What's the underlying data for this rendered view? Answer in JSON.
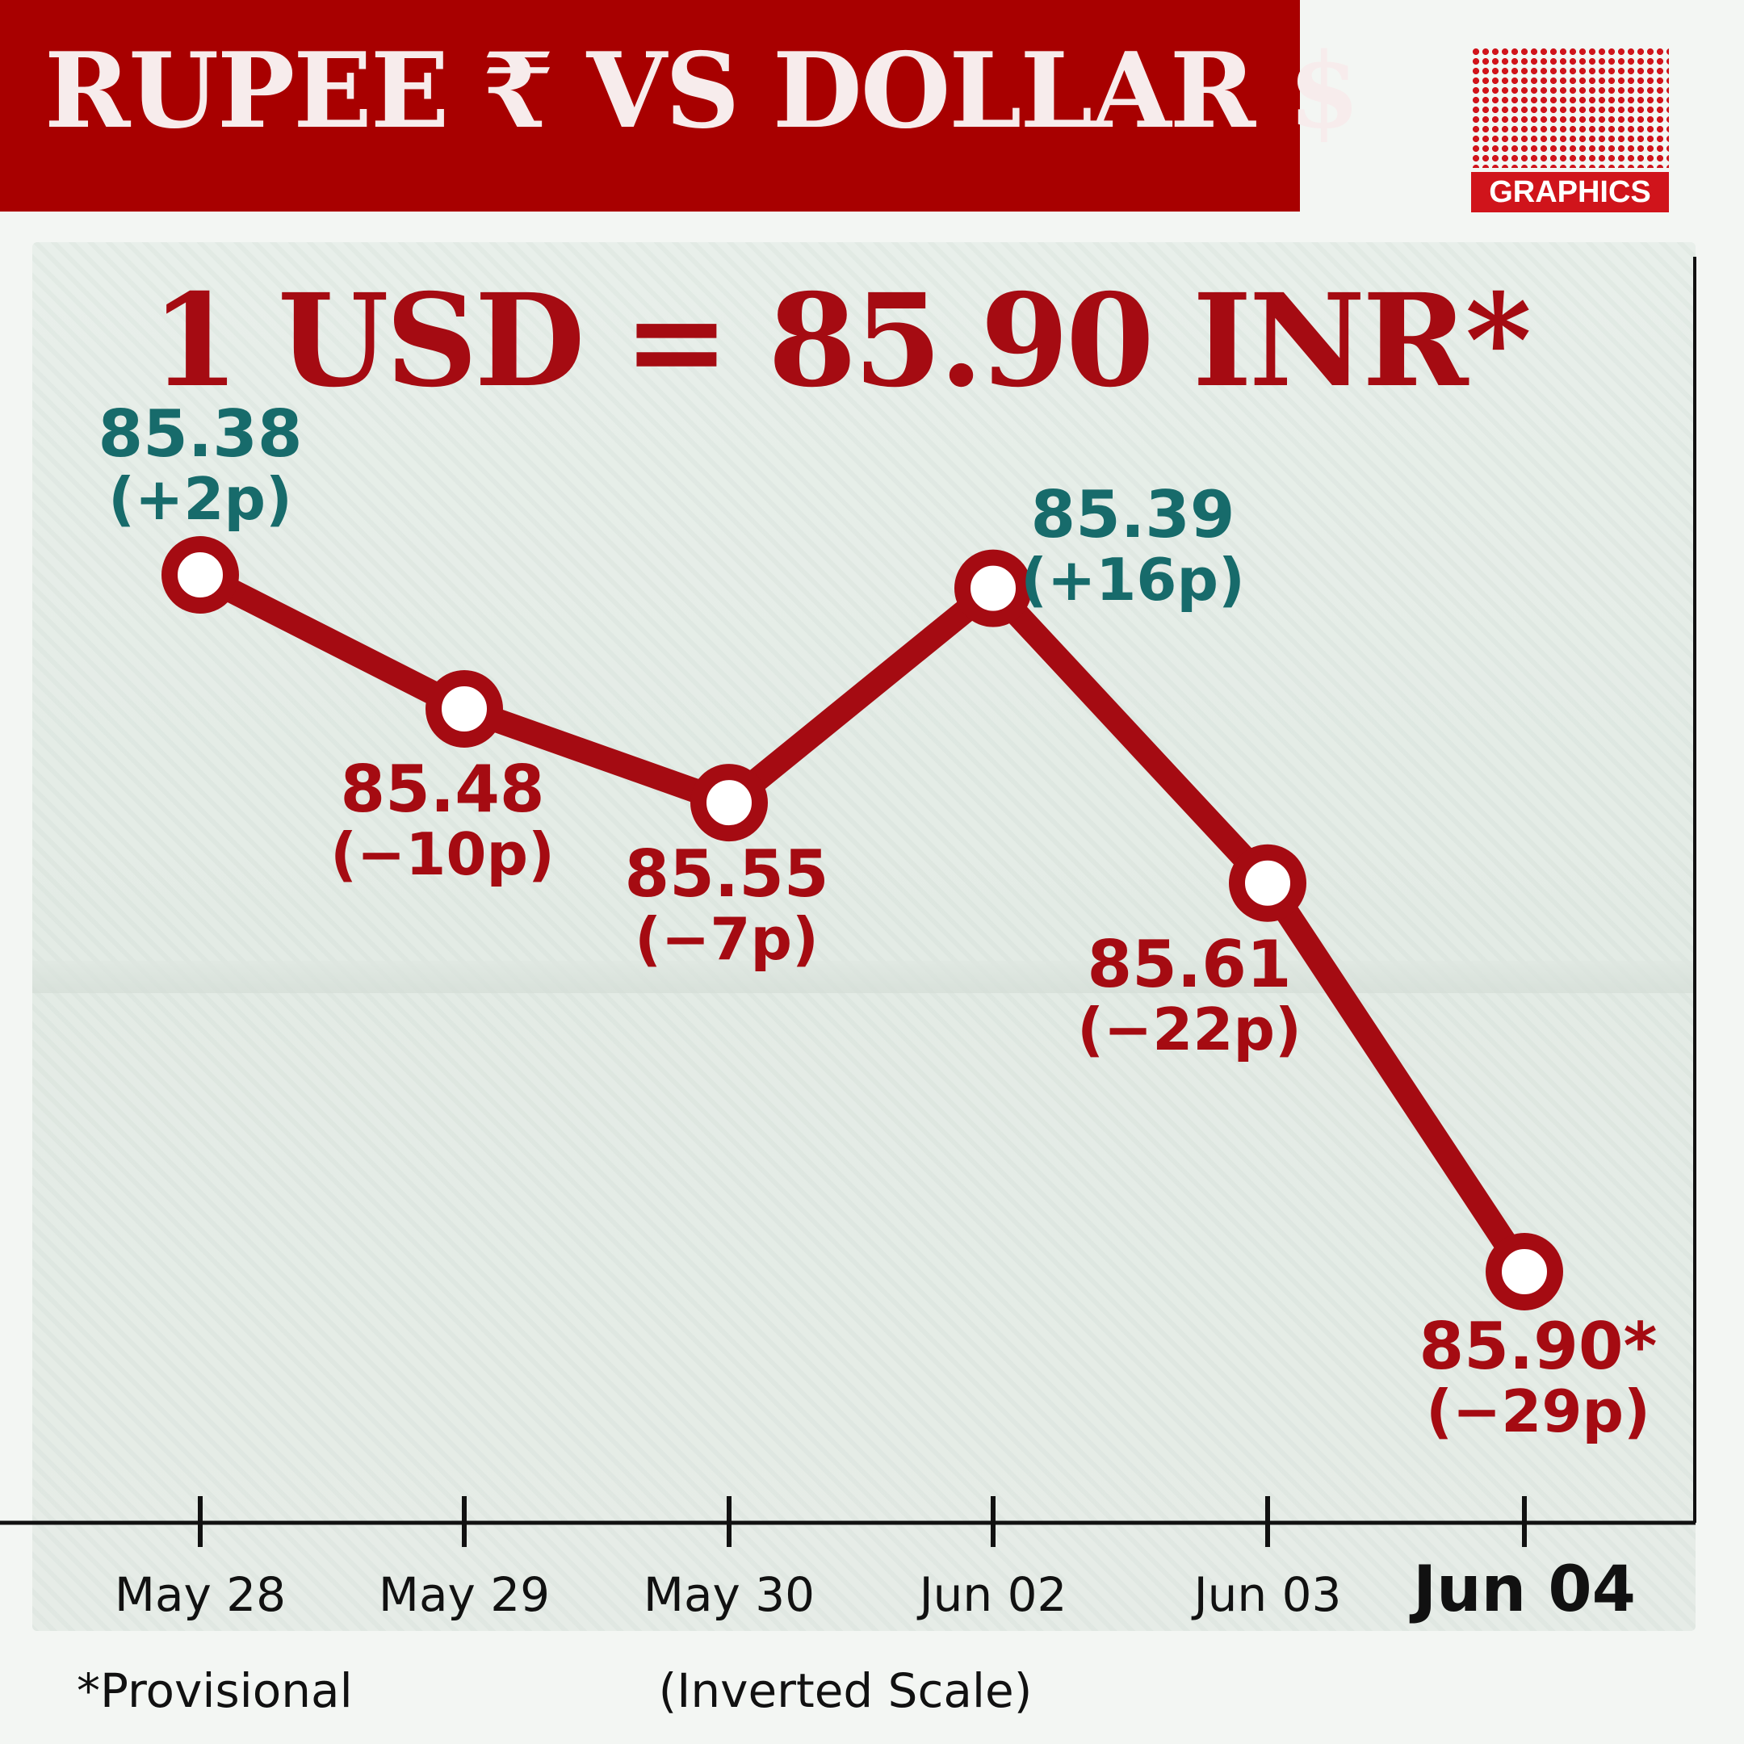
{
  "header": {
    "title": "RUPEE ₹   VS   DOLLAR $",
    "logo_label": "GRAPHICS"
  },
  "headline": "1 USD = 85.90 INR*",
  "footnote": "*Provisional",
  "scale_note": "(Inverted Scale)",
  "colors": {
    "accent": "#a50b12",
    "positive": "#176b6b",
    "negative": "#a50b12",
    "line": "#a50b12"
  },
  "chart_data": {
    "type": "line",
    "title": "1 USD = 85.90 INR*",
    "y_inverted": true,
    "ylim": [
      85.3,
      85.96
    ],
    "categories": [
      "May 28",
      "May 29",
      "May 30",
      "Jun 02",
      "Jun 03",
      "Jun 04"
    ],
    "series": [
      {
        "values": [
          85.38,
          85.48,
          85.55,
          85.39,
          85.61,
          85.9
        ]
      }
    ],
    "value_labels": [
      "85.38",
      "85.48",
      "85.55",
      "85.39",
      "85.61",
      "85.90*"
    ],
    "change_labels": [
      "(+2p)",
      "(−10p)",
      "(−7p)",
      "(+16p)",
      "(−22p)",
      "(−29p)"
    ],
    "change_direction": [
      "up",
      "down",
      "down",
      "up",
      "down",
      "down"
    ],
    "highlight_last": true
  }
}
